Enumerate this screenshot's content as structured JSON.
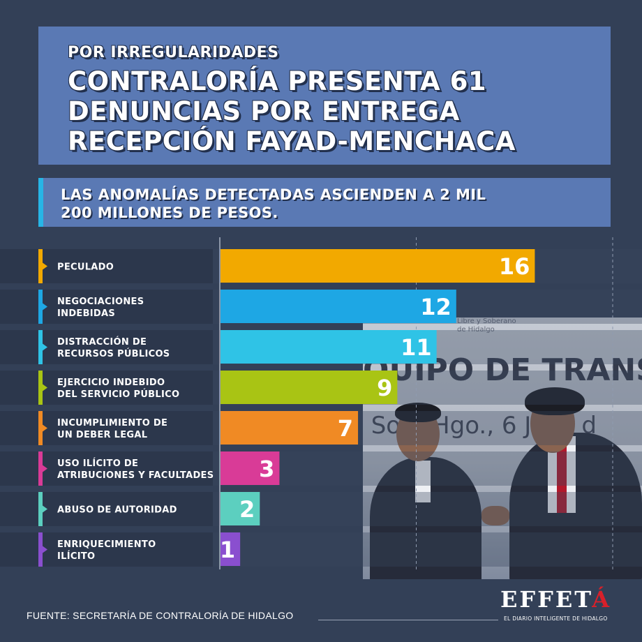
{
  "header": {
    "kicker": "POR IRREGULARIDADES",
    "title_lines": [
      "CONTRALORÍA PRESENTA 61",
      "DENUNCIAS POR ENTREGA",
      "RECEPCIÓN FAYAD-MENCHACA"
    ]
  },
  "subheader": {
    "lines": [
      "LAS ANOMALÍAS DETECTADAS ASCIENDEN A 2 MIL",
      "200 MILLONES DE PESOS."
    ]
  },
  "photo": {
    "banner": "EQUIPO DE TRANS",
    "banner_sub": "e Soto Hgo., 6 Julio d",
    "small_text": [
      "Libre y Soberano",
      "de Hidalgo"
    ]
  },
  "chart_data": {
    "type": "bar",
    "orientation": "horizontal",
    "categories": [
      [
        "PECULADO"
      ],
      [
        "NEGOCIACIONES",
        "INDEBIDAS"
      ],
      [
        "DISTRACCIÓN DE",
        "RECURSOS PÚBLICOS"
      ],
      [
        "EJERCICIO INDEBIDO",
        "DEL SERVICIO PÚBLICO"
      ],
      [
        "INCUMPLIMIENTO DE",
        "UN DEBER LEGAL"
      ],
      [
        "USO ILÍCITO DE",
        "ATRIBUCIONES Y FACULTADES"
      ],
      [
        "ABUSO DE AUTORIDAD"
      ],
      [
        "ENRIQUECIMIENTO",
        "ILÍCITO"
      ]
    ],
    "values": [
      16,
      12,
      11,
      9,
      7,
      3,
      2,
      1
    ],
    "data_labels": [
      "16",
      "12",
      "11",
      "9",
      "7",
      "3",
      "2",
      "1"
    ],
    "colors": [
      "#f2a900",
      "#1ea7e4",
      "#2fc3e6",
      "#a9c414",
      "#f08a24",
      "#d93b97",
      "#5ccfbf",
      "#8a4fcf"
    ],
    "xlim": [
      0,
      20
    ],
    "gridlines": [
      0,
      10,
      20
    ],
    "grid": true,
    "legend": "none"
  },
  "footer": {
    "source": "FUENTE: SECRETARÍA DE CONTRALORÍA DE HIDALGO",
    "logo_main": "EFFET",
    "logo_accent": "Á",
    "tagline": "EL DIARIO INTELIGENTE DE HIDALGO"
  }
}
